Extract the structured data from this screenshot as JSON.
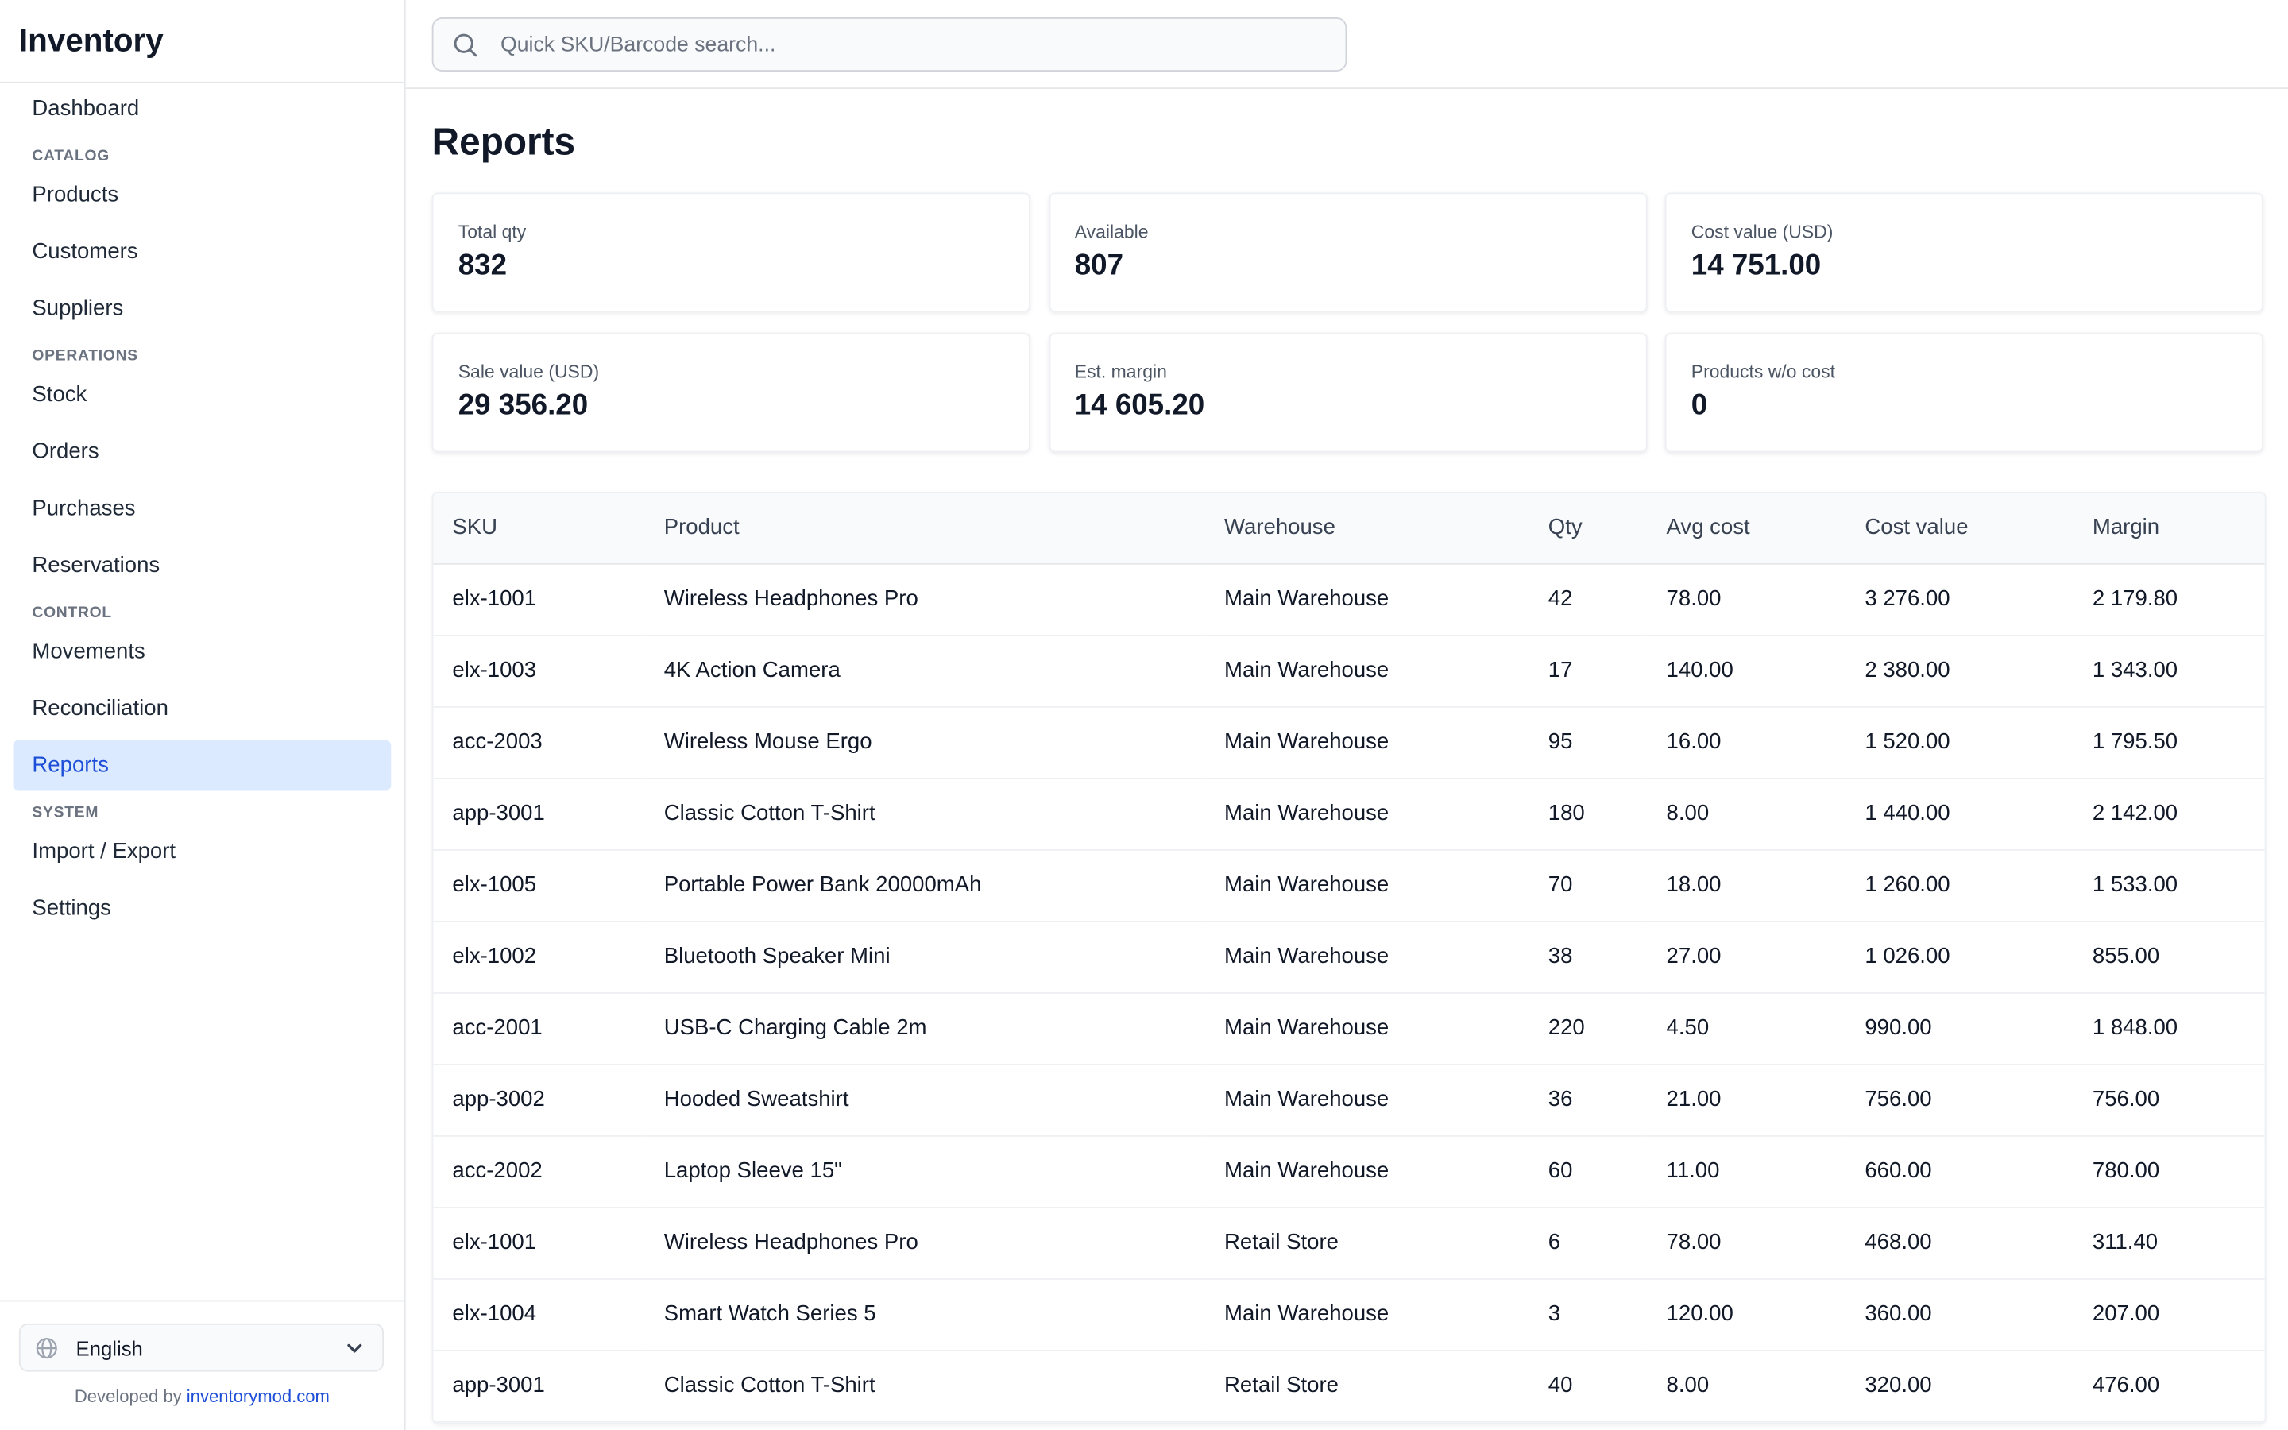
{
  "app": {
    "title": "Inventory"
  },
  "sidebar": {
    "items": [
      {
        "type": "item",
        "label": "Dashboard",
        "name": "sidebar-item-dashboard"
      },
      {
        "type": "section",
        "label": "CATALOG",
        "name": "sidebar-section-catalog"
      },
      {
        "type": "item",
        "label": "Products",
        "name": "sidebar-item-products"
      },
      {
        "type": "item",
        "label": "Customers",
        "name": "sidebar-item-customers"
      },
      {
        "type": "item",
        "label": "Suppliers",
        "name": "sidebar-item-suppliers"
      },
      {
        "type": "section",
        "label": "OPERATIONS",
        "name": "sidebar-section-operations"
      },
      {
        "type": "item",
        "label": "Stock",
        "name": "sidebar-item-stock"
      },
      {
        "type": "item",
        "label": "Orders",
        "name": "sidebar-item-orders"
      },
      {
        "type": "item",
        "label": "Purchases",
        "name": "sidebar-item-purchases"
      },
      {
        "type": "item",
        "label": "Reservations",
        "name": "sidebar-item-reservations"
      },
      {
        "type": "section",
        "label": "CONTROL",
        "name": "sidebar-section-control"
      },
      {
        "type": "item",
        "label": "Movements",
        "name": "sidebar-item-movements"
      },
      {
        "type": "item",
        "label": "Reconciliation",
        "name": "sidebar-item-reconciliation"
      },
      {
        "type": "item",
        "label": "Reports",
        "name": "sidebar-item-reports",
        "active": true
      },
      {
        "type": "section",
        "label": "SYSTEM",
        "name": "sidebar-section-system"
      },
      {
        "type": "item",
        "label": "Import / Export",
        "name": "sidebar-item-import-export"
      },
      {
        "type": "item",
        "label": "Settings",
        "name": "sidebar-item-settings"
      }
    ],
    "language": {
      "selected": "English",
      "icon": "globe-icon",
      "chevron": "chevron-down-icon"
    },
    "credit": {
      "prefix": "Developed by ",
      "link": "inventorymod.com"
    }
  },
  "search": {
    "placeholder": "Quick SKU/Barcode search...",
    "value": "",
    "icon": "search-icon"
  },
  "page": {
    "title": "Reports"
  },
  "stats": [
    {
      "label": "Total qty",
      "value": "832"
    },
    {
      "label": "Available",
      "value": "807"
    },
    {
      "label": "Cost value (USD)",
      "value": "14 751.00"
    },
    {
      "label": "Sale value (USD)",
      "value": "29 356.20"
    },
    {
      "label": "Est. margin",
      "value": "14 605.20"
    },
    {
      "label": "Products w/o cost",
      "value": "0"
    }
  ],
  "table": {
    "columns": [
      "SKU",
      "Product",
      "Warehouse",
      "Qty",
      "Avg cost",
      "Cost value",
      "Margin"
    ],
    "rows": [
      [
        "elx-1001",
        "Wireless Headphones Pro",
        "Main Warehouse",
        "42",
        "78.00",
        "3 276.00",
        "2 179.80"
      ],
      [
        "elx-1003",
        "4K Action Camera",
        "Main Warehouse",
        "17",
        "140.00",
        "2 380.00",
        "1 343.00"
      ],
      [
        "acc-2003",
        "Wireless Mouse Ergo",
        "Main Warehouse",
        "95",
        "16.00",
        "1 520.00",
        "1 795.50"
      ],
      [
        "app-3001",
        "Classic Cotton T-Shirt",
        "Main Warehouse",
        "180",
        "8.00",
        "1 440.00",
        "2 142.00"
      ],
      [
        "elx-1005",
        "Portable Power Bank 20000mAh",
        "Main Warehouse",
        "70",
        "18.00",
        "1 260.00",
        "1 533.00"
      ],
      [
        "elx-1002",
        "Bluetooth Speaker Mini",
        "Main Warehouse",
        "38",
        "27.00",
        "1 026.00",
        "855.00"
      ],
      [
        "acc-2001",
        "USB-C Charging Cable 2m",
        "Main Warehouse",
        "220",
        "4.50",
        "990.00",
        "1 848.00"
      ],
      [
        "app-3002",
        "Hooded Sweatshirt",
        "Main Warehouse",
        "36",
        "21.00",
        "756.00",
        "756.00"
      ],
      [
        "acc-2002",
        "Laptop Sleeve 15\"",
        "Main Warehouse",
        "60",
        "11.00",
        "660.00",
        "780.00"
      ],
      [
        "elx-1001",
        "Wireless Headphones Pro",
        "Retail Store",
        "6",
        "78.00",
        "468.00",
        "311.40"
      ],
      [
        "elx-1004",
        "Smart Watch Series 5",
        "Main Warehouse",
        "3",
        "120.00",
        "360.00",
        "207.00"
      ],
      [
        "app-3001",
        "Classic Cotton T-Shirt",
        "Retail Store",
        "40",
        "8.00",
        "320.00",
        "476.00"
      ]
    ]
  },
  "colors": {
    "accent": "#1d4ed8",
    "active_bg": "#dbeafe",
    "border": "#e5e7eb",
    "muted": "#6b7280"
  }
}
